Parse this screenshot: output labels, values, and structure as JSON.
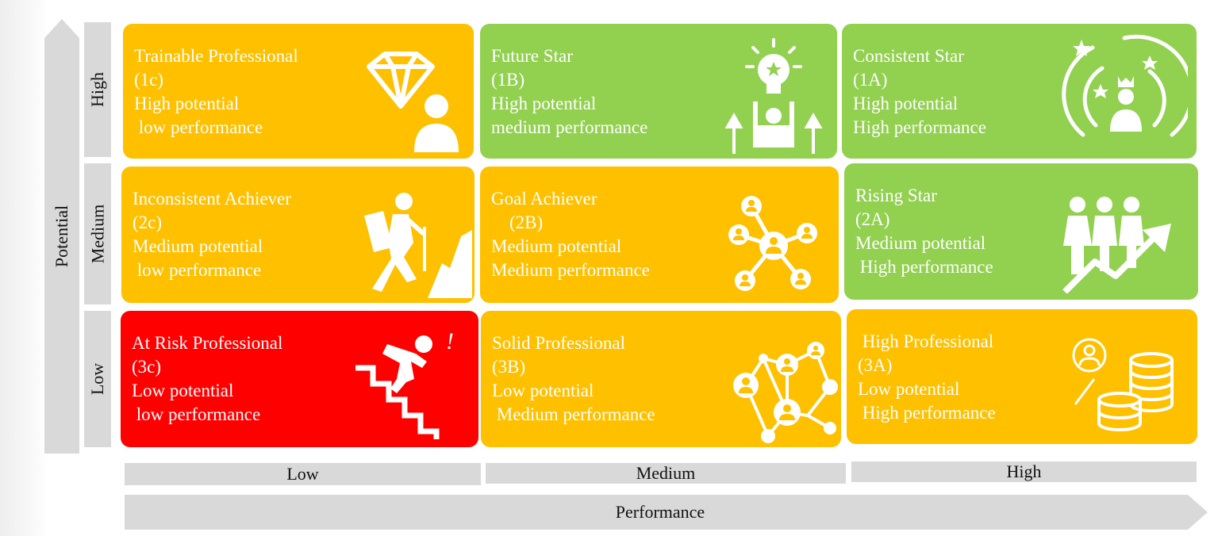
{
  "y_axis": {
    "label": "Potential",
    "levels": [
      "High",
      "Medium",
      "Low"
    ]
  },
  "x_axis": {
    "label": "Performance",
    "levels": [
      "Low",
      "Medium",
      "High"
    ]
  },
  "colors": {
    "amber": "#ffc000",
    "green": "#92d050",
    "red": "#ff0000",
    "label_bg": "#d9d9d9"
  },
  "cells": [
    {
      "title": "Trainable Professional",
      "code": "(1c)",
      "line1": "High potential",
      "line2": " low performance",
      "color": "amber",
      "icon": "diamond-person-icon"
    },
    {
      "title": "Future Star",
      "code": "(1B)",
      "line1": "High potential",
      "line2": "medium performance",
      "color": "green",
      "icon": "lightbulb-growth-icon"
    },
    {
      "title": "Consistent Star",
      "code": "(1A)",
      "line1": "High potential",
      "line2": "High performance",
      "color": "green",
      "icon": "star-crown-person-icon"
    },
    {
      "title": "Inconsistent Achiever",
      "code": "(2c)",
      "line1": "Medium potential",
      "line2": " low performance",
      "color": "amber",
      "icon": "hiker-icon"
    },
    {
      "title": "Goal Achiever",
      "code": "    (2B)",
      "line1": "Medium potential",
      "line2": "Medium performance",
      "color": "amber",
      "icon": "network-hub-icon"
    },
    {
      "title": "Rising Star",
      "code": "(2A)",
      "line1": "Medium potential",
      "line2": " High performance",
      "color": "green",
      "icon": "team-growth-icon"
    },
    {
      "title": "At Risk Professional",
      "code": "(3c)",
      "line1": "Low potential",
      "line2": " low performance",
      "color": "red",
      "icon": "falling-stairs-icon"
    },
    {
      "title": "Solid Professional",
      "code": "(3B)",
      "line1": "Low potential",
      "line2": " Medium performance",
      "color": "amber",
      "icon": "people-network-icon"
    },
    {
      "title": " High Professional",
      "code": "(3A)",
      "line1": "Low potential",
      "line2": " High performance",
      "color": "amber",
      "icon": "coins-person-icon"
    }
  ]
}
